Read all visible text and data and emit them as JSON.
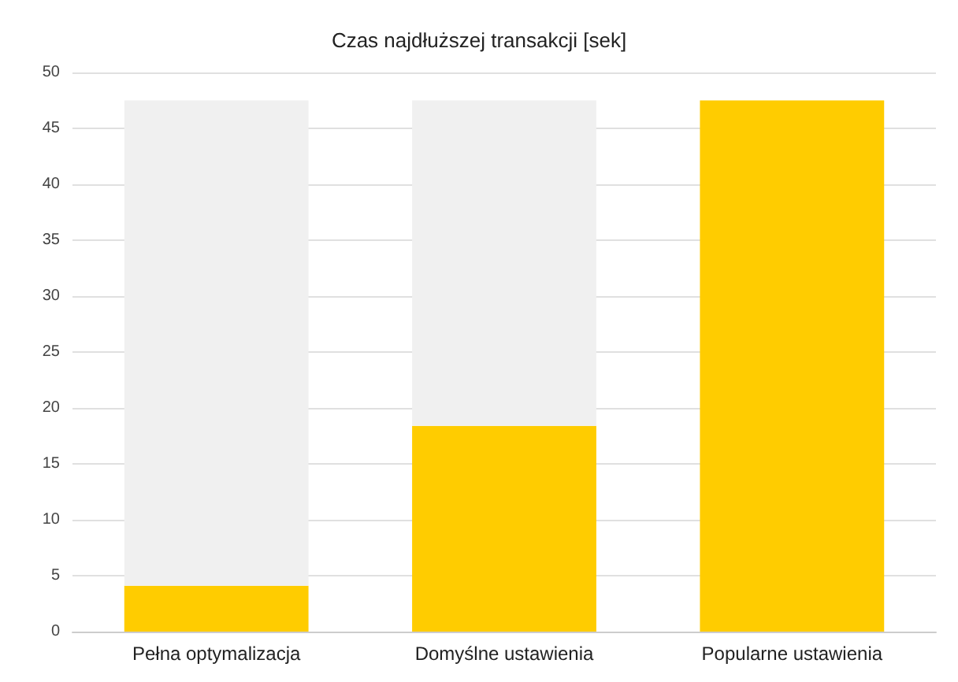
{
  "chart_data": {
    "type": "bar",
    "title": "Czas najdłuższej transakcji [sek]",
    "categories": [
      "Pełna optymalizacja",
      "Domyślne ustawienia",
      "Popularne ustawienia"
    ],
    "stacked": true,
    "series": [
      {
        "color": "#ffcc00",
        "values": [
          4.1,
          18.4,
          47.5
        ]
      },
      {
        "color": "#f0f0f0",
        "values": [
          43.4,
          29.1,
          0
        ]
      }
    ],
    "ylim": [
      0,
      50
    ],
    "yticks": [
      0,
      5,
      10,
      15,
      20,
      25,
      30,
      35,
      40,
      45,
      50
    ],
    "grid": "y"
  }
}
